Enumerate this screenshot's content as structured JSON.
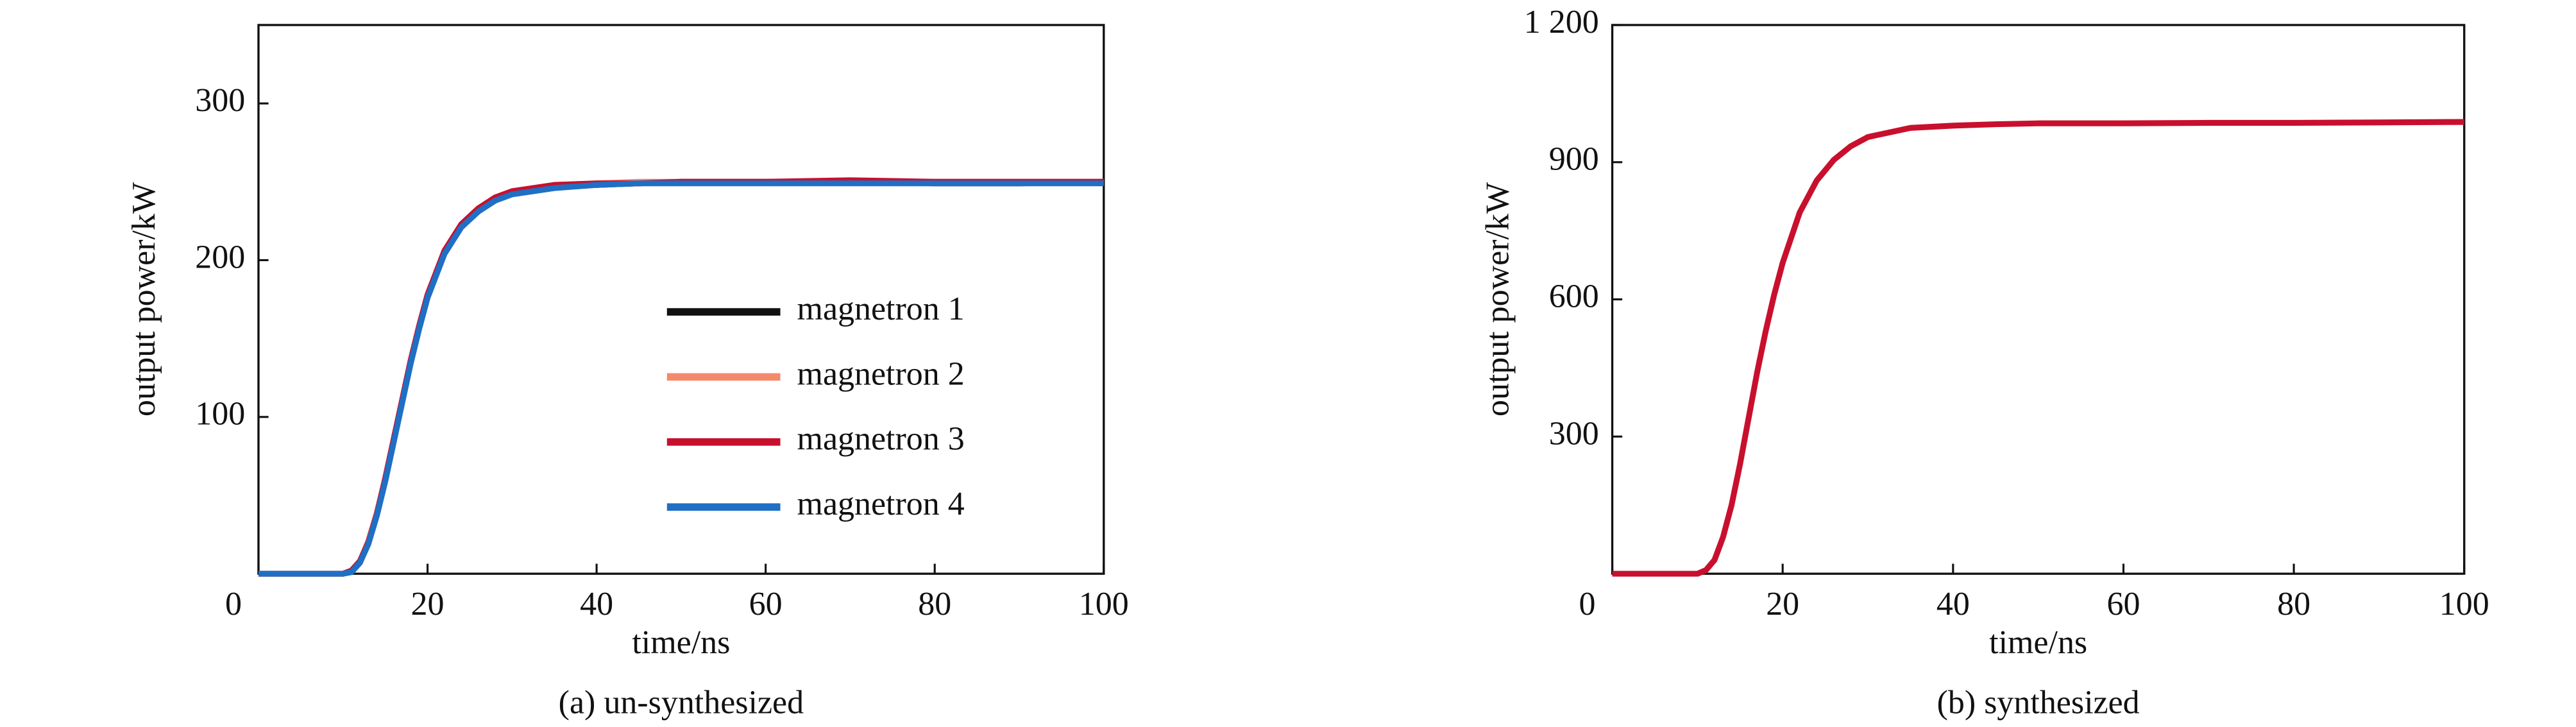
{
  "chart_data": [
    {
      "type": "line",
      "title": "(a) un-synthesized",
      "xlabel": "time/ns",
      "ylabel": "output power/kW",
      "x": [
        0,
        10,
        11,
        12,
        13,
        14,
        15,
        16,
        17,
        18,
        19,
        20,
        22,
        24,
        26,
        28,
        30,
        35,
        40,
        45,
        50,
        60,
        70,
        80,
        90,
        100
      ],
      "series": [
        {
          "name": "magnetron 1",
          "color": "#111111",
          "values": [
            0,
            0,
            2,
            8,
            20,
            38,
            60,
            85,
            110,
            135,
            157,
            177,
            205,
            222,
            232,
            239,
            243,
            247,
            248,
            249,
            250,
            250,
            250,
            249,
            249,
            250
          ]
        },
        {
          "name": "magnetron 2",
          "color": "#f4896b",
          "values": [
            0,
            0,
            2,
            8,
            21,
            39,
            61,
            86,
            111,
            136,
            158,
            178,
            206,
            223,
            233,
            240,
            244,
            248,
            249,
            250,
            250,
            250,
            250,
            250,
            250,
            250
          ]
        },
        {
          "name": "magnetron 3",
          "color": "#c8102e",
          "values": [
            0,
            0,
            2,
            8,
            20,
            38,
            61,
            86,
            111,
            136,
            158,
            178,
            206,
            223,
            233,
            240,
            244,
            248,
            249,
            249,
            250,
            250,
            251,
            250,
            250,
            250
          ]
        },
        {
          "name": "magnetron 4",
          "color": "#1f6fc5",
          "values": [
            0,
            0,
            1,
            7,
            19,
            37,
            59,
            84,
            109,
            134,
            156,
            176,
            204,
            221,
            231,
            238,
            242,
            246,
            248,
            249,
            249,
            249,
            249,
            249,
            249,
            249
          ]
        }
      ],
      "xlim": [
        0,
        100
      ],
      "ylim": [
        0,
        350
      ],
      "xticks": [
        0,
        20,
        40,
        60,
        80,
        100
      ],
      "yticks": [
        100,
        200,
        300
      ],
      "legend": "lower right"
    },
    {
      "type": "line",
      "title": "(b) synthesized",
      "xlabel": "time/ns",
      "ylabel": "output power/kW",
      "x": [
        0,
        10,
        11,
        12,
        13,
        14,
        15,
        16,
        17,
        18,
        19,
        20,
        22,
        24,
        26,
        28,
        30,
        35,
        40,
        45,
        50,
        60,
        70,
        80,
        90,
        100
      ],
      "series": [
        {
          "color": "#c8102e",
          "values": [
            0,
            0,
            8,
            30,
            80,
            150,
            240,
            340,
            440,
            530,
            610,
            680,
            790,
            860,
            905,
            935,
            955,
            975,
            980,
            983,
            985,
            985,
            986,
            986,
            987,
            988
          ]
        }
      ],
      "xlim": [
        0,
        100
      ],
      "ylim": [
        0,
        1200
      ],
      "xticks": [
        0,
        20,
        40,
        60,
        80,
        100
      ],
      "yticks": [
        300,
        600,
        900,
        {
          "value": 1200,
          "label": "1 200"
        }
      ]
    }
  ]
}
